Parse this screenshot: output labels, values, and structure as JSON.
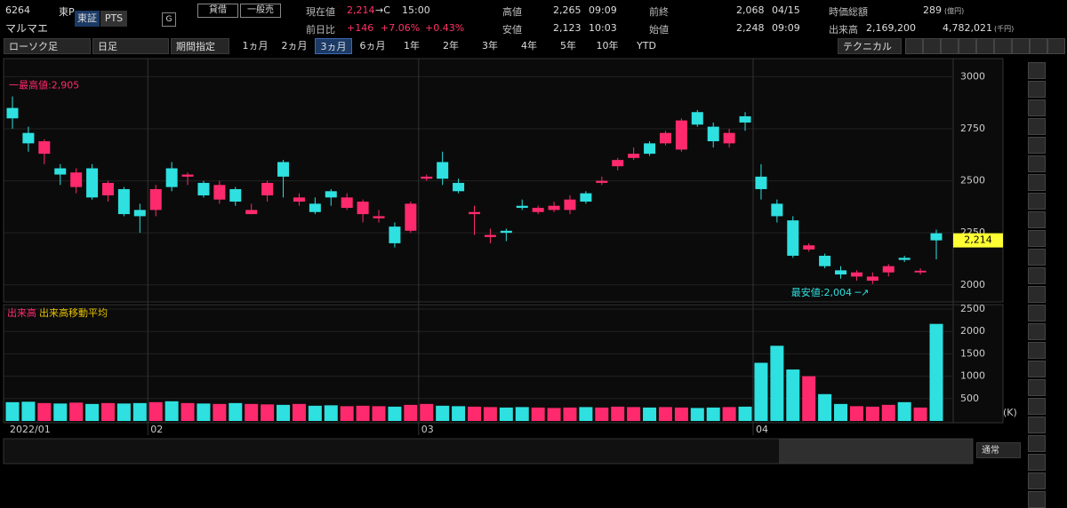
{
  "header": {
    "code": "6264",
    "market": "東P",
    "exchange": "東証",
    "pts": "PTS",
    "g": "G",
    "margin": "貸借",
    "general_short": "一般売",
    "name": "マルマエ",
    "price_label": "現在値",
    "price": "2,214",
    "price_flag": "→C",
    "price_time": "15:00",
    "change_label": "前日比",
    "change": "+146",
    "change_pct": "+7.06%",
    "change_pct2": "+0.43%",
    "high_label": "高値",
    "high": "2,265",
    "high_time": "09:09",
    "low_label": "安値",
    "low": "2,123",
    "low_time": "10:03",
    "prev_label": "前終",
    "prev": "2,068",
    "prev_date": "04/15",
    "open_label": "始値",
    "open": "2,248",
    "open_time": "09:09",
    "mcap_label": "時価総額",
    "mcap": "289",
    "mcap_unit": "(億円)",
    "volume_label": "出来高",
    "volume": "2,169,200",
    "turnover": "4,782,021",
    "turnover_unit": "(千円)"
  },
  "toolbar": {
    "chart_type": "ローソク足",
    "interval": "日足",
    "period": "期間指定",
    "ranges": [
      "1ヵ月",
      "2ヵ月",
      "3ヵ月",
      "6ヵ月",
      "1年",
      "2年",
      "3年",
      "4年",
      "5年",
      "10年",
      "YTD"
    ],
    "active_range": 2,
    "technical": "テクニカル"
  },
  "footer": {
    "mode": "通常"
  },
  "chart_data": [
    {
      "type": "candlestick",
      "up_color": "#ff2a6d",
      "down_color": "#2ee0e0",
      "categories": [
        "2022/01",
        null,
        null,
        null,
        null,
        null,
        null,
        null,
        null,
        "02",
        null,
        null,
        null,
        null,
        null,
        null,
        null,
        null,
        null,
        null,
        null,
        null,
        null,
        null,
        null,
        null,
        "03",
        null,
        null,
        null,
        null,
        null,
        null,
        null,
        null,
        null,
        null,
        null,
        null,
        null,
        null,
        null,
        null,
        null,
        null,
        null,
        null,
        "04",
        null,
        null,
        null,
        null,
        null,
        null,
        null,
        null,
        null,
        null,
        null
      ],
      "open": [
        2850,
        2730,
        2630,
        2560,
        2470,
        2560,
        2430,
        2460,
        2360,
        2360,
        2560,
        2520,
        2490,
        2410,
        2460,
        2340,
        2430,
        2590,
        2400,
        2390,
        2450,
        2370,
        2340,
        2320,
        2280,
        2260,
        2510,
        2590,
        2490,
        2340,
        2230,
        2260,
        2380,
        2350,
        2360,
        2360,
        2440,
        2490,
        2570,
        2610,
        2680,
        2680,
        2650,
        2830,
        2760,
        2680,
        2810,
        2520,
        2390,
        2310,
        2170,
        2140,
        2070,
        2040,
        2020,
        2060,
        2130,
        2060,
        2248
      ],
      "high": [
        2905,
        2760,
        2700,
        2580,
        2560,
        2580,
        2500,
        2470,
        2390,
        2480,
        2590,
        2540,
        2500,
        2500,
        2470,
        2390,
        2500,
        2600,
        2440,
        2420,
        2460,
        2440,
        2410,
        2360,
        2300,
        2400,
        2530,
        2640,
        2510,
        2380,
        2270,
        2270,
        2410,
        2380,
        2400,
        2430,
        2450,
        2520,
        2610,
        2660,
        2690,
        2740,
        2800,
        2840,
        2780,
        2750,
        2830,
        2580,
        2410,
        2330,
        2200,
        2150,
        2090,
        2070,
        2060,
        2100,
        2140,
        2080,
        2265
      ],
      "low": [
        2750,
        2640,
        2580,
        2480,
        2440,
        2410,
        2400,
        2330,
        2250,
        2330,
        2450,
        2480,
        2420,
        2390,
        2380,
        2340,
        2400,
        2420,
        2380,
        2340,
        2380,
        2360,
        2300,
        2300,
        2180,
        2250,
        2500,
        2480,
        2440,
        2240,
        2200,
        2210,
        2360,
        2340,
        2350,
        2340,
        2390,
        2480,
        2550,
        2600,
        2620,
        2670,
        2640,
        2760,
        2660,
        2660,
        2740,
        2410,
        2300,
        2130,
        2160,
        2080,
        2030,
        2020,
        2004,
        2040,
        2110,
        2050,
        2123
      ],
      "close": [
        2800,
        2680,
        2690,
        2530,
        2540,
        2420,
        2490,
        2340,
        2330,
        2460,
        2470,
        2530,
        2430,
        2480,
        2400,
        2360,
        2490,
        2520,
        2420,
        2350,
        2420,
        2420,
        2400,
        2330,
        2200,
        2390,
        2520,
        2510,
        2450,
        2350,
        2240,
        2250,
        2370,
        2370,
        2380,
        2410,
        2400,
        2500,
        2600,
        2630,
        2630,
        2730,
        2790,
        2770,
        2690,
        2730,
        2780,
        2460,
        2330,
        2140,
        2190,
        2090,
        2050,
        2060,
        2040,
        2090,
        2120,
        2068,
        2214
      ],
      "ylim": [
        1918,
        3087
      ],
      "yticks": [
        2000,
        2250,
        2500,
        2750,
        3000
      ],
      "high_note": "一最高値:2,905",
      "low_note": "最安値:2,004 ─↗",
      "last_label": "2,214"
    },
    {
      "type": "bar",
      "title": "出来高",
      "legend": "出来高移動平均",
      "unit": "(K)",
      "values": [
        420,
        430,
        400,
        390,
        410,
        380,
        400,
        390,
        400,
        420,
        440,
        400,
        390,
        380,
        400,
        380,
        370,
        360,
        380,
        340,
        350,
        330,
        340,
        330,
        320,
        360,
        380,
        340,
        330,
        320,
        310,
        300,
        310,
        300,
        290,
        300,
        310,
        300,
        320,
        310,
        300,
        310,
        300,
        290,
        300,
        310,
        320,
        1300,
        1680,
        1150,
        1000,
        600,
        380,
        330,
        320,
        360,
        420,
        300,
        2169
      ],
      "ylim": [
        0,
        2560
      ],
      "yticks": [
        500,
        1000,
        1500,
        2000,
        2500
      ]
    }
  ]
}
